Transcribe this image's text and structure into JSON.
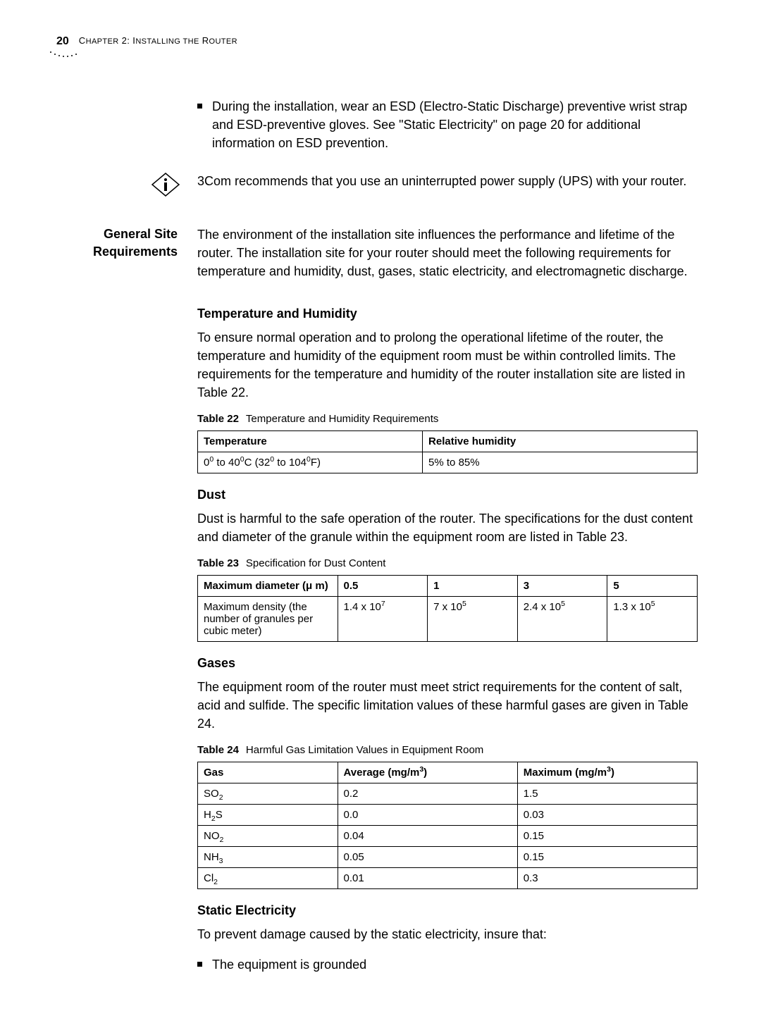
{
  "page": {
    "number": "20",
    "chapter_prefix": "C",
    "chapter_rest": "HAPTER",
    "chapter_num": " 2: I",
    "chapter_rest2": "NSTALLING THE",
    "chapter_rest3": " R",
    "chapter_rest4": "OUTER"
  },
  "bullet1": "During the installation, wear an ESD (Electro-Static Discharge) preventive wrist strap and ESD-preventive gloves. See \"Static Electricity\" on page 20 for additional information on ESD prevention.",
  "info_note": "3Com recommends that you use an uninterrupted power supply (UPS) with your router.",
  "side_label_1a": "General Site",
  "side_label_1b": "Requirements",
  "gsr_intro": "The environment of the installation site influences the performance and lifetime of the router. The installation site for your router should meet the following requirements for temperature and humidity, dust, gases, static electricity, and electromagnetic discharge.",
  "temp_head": "Temperature and Humidity",
  "temp_body": "To ensure normal operation and to prolong the operational lifetime of the router, the temperature and humidity of the equipment room must be within controlled limits. The requirements for the temperature and humidity of the router installation site are listed in Table 22.",
  "t22_label": "Table 22",
  "t22_title": "Temperature and Humidity Requirements",
  "t22": {
    "h1": "Temperature",
    "h2": "Relative humidity",
    "c1_html": "0<sup>0</sup> to 40<sup>0</sup>C (32<sup>0</sup> to 104<sup>0</sup>F)",
    "c2": "5% to 85%"
  },
  "dust_head": "Dust",
  "dust_body": "Dust is harmful to the safe operation of the router. The specifications for the dust content and diameter of the granule within the equipment room are listed in Table 23.",
  "t23_label": "Table 23",
  "t23_title": "Specification for Dust Content",
  "t23": {
    "r1c1": "Maximum diameter (μ m)",
    "r1c2": "0.5",
    "r1c3": "1",
    "r1c4": "3",
    "r1c5": "5",
    "r2c1": "Maximum density (the number of granules per cubic meter)",
    "r2c2_html": "1.4 x 10<sup>7</sup>",
    "r2c3_html": "7 x 10<sup>5</sup>",
    "r2c4_html": "2.4 x 10<sup>5</sup>",
    "r2c5_html": "1.3 x 10<sup>5</sup>"
  },
  "gases_head": "Gases",
  "gases_body": "The equipment room of the router must meet strict requirements for the content of salt, acid and sulfide. The specific limitation values of these harmful gases are given in Table 24.",
  "t24_label": "Table 24",
  "t24_title": "Harmful Gas Limitation Values in Equipment Room",
  "t24": {
    "h1": "Gas",
    "h2_html": "Average (mg/m<sup>3</sup>)",
    "h3_html": "Maximum (mg/m<sup>3</sup>)",
    "rows": [
      {
        "g_html": "SO<sub>2</sub>",
        "avg": "0.2",
        "max": "1.5"
      },
      {
        "g_html": "H<sub>2</sub>S",
        "avg": "0.0",
        "max": "0.03"
      },
      {
        "g_html": "NO<sub>2</sub>",
        "avg": "0.04",
        "max": "0.15"
      },
      {
        "g_html": "NH<sub>3</sub>",
        "avg": "0.05",
        "max": "0.15"
      },
      {
        "g_html": "Cl<sub>2</sub>",
        "avg": "0.01",
        "max": "0.3"
      }
    ]
  },
  "static_head": "Static Electricity",
  "static_body": "To prevent damage caused by the static electricity, insure that:",
  "static_bullet1": "The equipment is grounded",
  "table_col_widths": {
    "t22": [
      "45%",
      "55%"
    ],
    "t23": [
      "28%",
      "18%",
      "18%",
      "18%",
      "18%"
    ],
    "t24": [
      "28%",
      "36%",
      "36%"
    ]
  },
  "colors": {
    "text": "#000000",
    "bg": "#ffffff",
    "border": "#000000"
  }
}
